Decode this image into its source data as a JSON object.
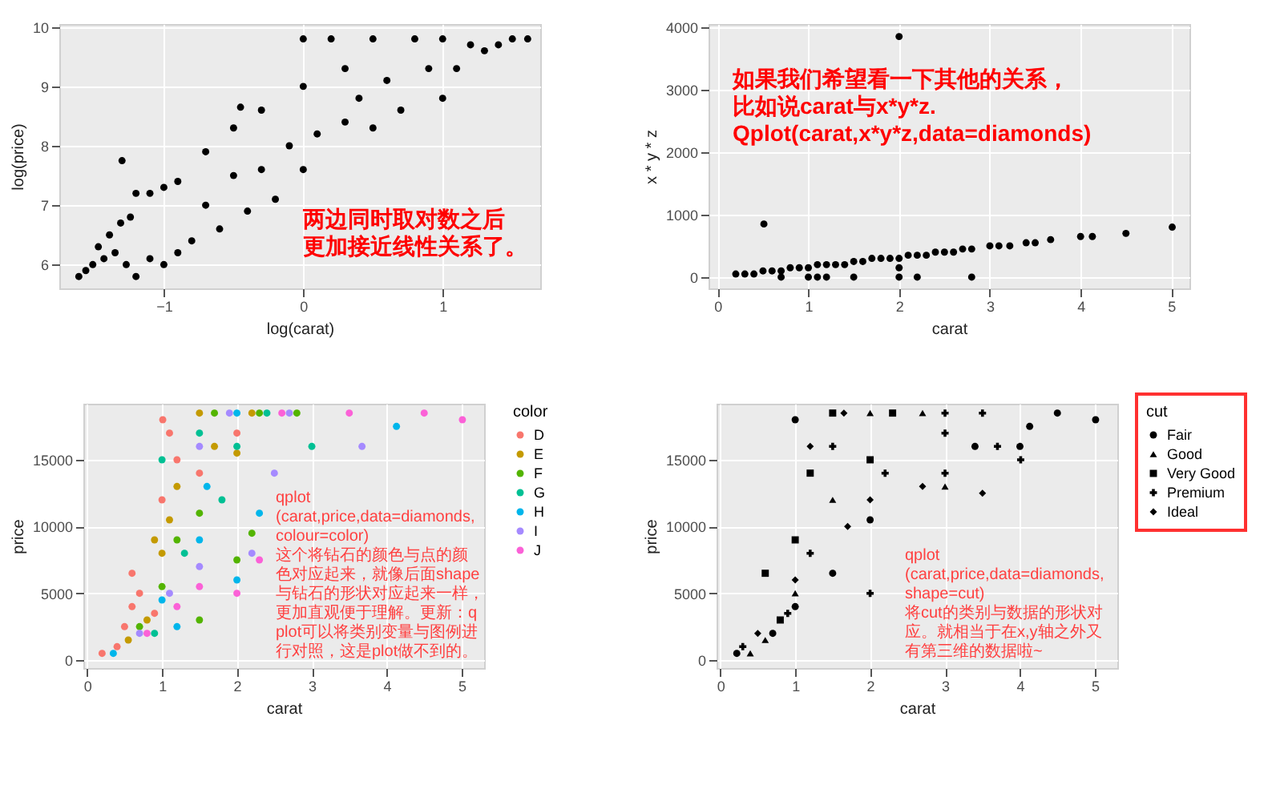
{
  "chart_data": [
    {
      "type": "scatter",
      "xlabel": "log(carat)",
      "ylabel": "log(price)",
      "xlim": [
        -1.75,
        1.7
      ],
      "ylim": [
        5.6,
        10.05
      ],
      "xticks": [
        -1,
        0,
        1
      ],
      "yticks": [
        6,
        7,
        8,
        9,
        10
      ],
      "grid": true,
      "marker": "circle",
      "annotations": [
        "两边同时取对数之后更加接近线性关系了。"
      ],
      "series": [
        {
          "color": "#000000",
          "x": [
            -1.61,
            -1.56,
            -1.51,
            -1.47,
            -1.43,
            -1.39,
            -1.35,
            -1.31,
            -1.27,
            -1.24,
            -1.2,
            -1.2,
            -1.1,
            -1.1,
            -1.0,
            -1.0,
            -0.9,
            -0.9,
            -0.8,
            -0.7,
            -0.7,
            -0.6,
            -0.5,
            -0.5,
            -0.4,
            -0.3,
            -0.3,
            -0.2,
            -0.1,
            0,
            0,
            0,
            0.1,
            0.2,
            0.3,
            0.3,
            0.4,
            0.5,
            0.5,
            0.6,
            0.7,
            0.8,
            0.9,
            1.0,
            1.0,
            1.1,
            1.2,
            1.3,
            1.4,
            1.5,
            1.61,
            -1.3,
            -0.45
          ],
          "values": [
            5.8,
            5.9,
            6.0,
            6.3,
            6.1,
            6.5,
            6.2,
            6.7,
            6.0,
            6.8,
            5.8,
            7.2,
            6.1,
            7.2,
            6.0,
            7.3,
            6.2,
            7.4,
            6.4,
            7.0,
            7.9,
            6.6,
            7.5,
            8.3,
            6.9,
            7.6,
            8.6,
            7.1,
            8.0,
            7.6,
            9.0,
            9.8,
            8.2,
            9.8,
            8.4,
            9.3,
            8.8,
            8.3,
            9.8,
            9.1,
            8.6,
            9.8,
            9.3,
            8.8,
            9.8,
            9.3,
            9.7,
            9.6,
            9.7,
            9.8,
            9.8,
            7.75,
            8.65
          ]
        }
      ]
    },
    {
      "type": "scatter",
      "xlabel": "carat",
      "ylabel": "x * y * z",
      "xlim": [
        -0.1,
        5.2
      ],
      "ylim": [
        -180,
        4050
      ],
      "xticks": [
        0,
        1,
        2,
        3,
        4,
        5
      ],
      "yticks": [
        0,
        1000,
        2000,
        3000,
        4000
      ],
      "grid": true,
      "marker": "circle",
      "annotations": [
        "如果我们希望看一下其他的关系，比如说carat与x*y*z.\nQplot(carat,x*y*z,data=diamonds)"
      ],
      "series": [
        {
          "color": "#000000",
          "x": [
            0.2,
            0.3,
            0.4,
            0.5,
            0.6,
            0.7,
            0.8,
            0.9,
            1.0,
            1.1,
            1.2,
            1.3,
            1.4,
            1.5,
            1.6,
            1.7,
            1.8,
            1.9,
            2.0,
            2.1,
            2.2,
            2.3,
            2.4,
            2.5,
            2.6,
            2.7,
            2.8,
            3.0,
            3.1,
            3.22,
            3.4,
            3.5,
            3.67,
            4.0,
            4.13,
            4.5,
            5.01,
            0.51,
            2.0,
            0.7,
            1.0,
            1.1,
            1.2,
            1.5,
            2.0,
            2.2,
            2.8,
            2.0
          ],
          "values": [
            50,
            50,
            50,
            100,
            100,
            100,
            150,
            150,
            150,
            200,
            200,
            200,
            200,
            250,
            250,
            300,
            300,
            300,
            300,
            350,
            350,
            350,
            400,
            400,
            400,
            450,
            450,
            500,
            500,
            500,
            550,
            550,
            600,
            650,
            650,
            700,
            800,
            850,
            3850,
            0,
            0,
            0,
            0,
            0,
            0,
            0,
            0,
            150
          ]
        }
      ]
    },
    {
      "type": "scatter",
      "xlabel": "carat",
      "ylabel": "price",
      "xlim": [
        -0.05,
        5.3
      ],
      "ylim": [
        -600,
        19200
      ],
      "xticks": [
        0,
        1,
        2,
        3,
        4,
        5
      ],
      "yticks": [
        0,
        5000,
        10000,
        15000
      ],
      "grid": true,
      "marker": "circle",
      "legend": "right",
      "legend_title": "color",
      "annotations": [
        "qplot\n(carat,price,data=diamonds,colour=color)\n这个将钻石的颜色与点的颜色对应起来，就像后面shape与钻石的形状对应起来一样，更加直观便于理解。更新：qplot可以将类别变量与图例进行对照，这是plot做不到的。"
      ],
      "series": [
        {
          "name": "D",
          "color": "#f8766d",
          "x": [
            0.2,
            0.4,
            0.5,
            0.6,
            0.6,
            0.7,
            0.9,
            1.0,
            1.01,
            1.1,
            1.2,
            1.5,
            2.0
          ],
          "values": [
            500,
            1000,
            2500,
            4000,
            6500,
            5000,
            3500,
            12000,
            18000,
            17000,
            15000,
            14000,
            17000
          ]
        },
        {
          "name": "E",
          "color": "#c49a00",
          "x": [
            0.55,
            0.8,
            0.9,
            1.0,
            1.1,
            1.2,
            1.5,
            1.7,
            2.0,
            2.2
          ],
          "values": [
            1500,
            3000,
            9000,
            8000,
            10500,
            13000,
            18500,
            16000,
            15500,
            18500
          ]
        },
        {
          "name": "F",
          "color": "#53b400",
          "x": [
            0.7,
            1.0,
            1.2,
            1.5,
            1.5,
            1.7,
            2.0,
            2.2,
            2.3,
            2.8
          ],
          "values": [
            2500,
            5500,
            9000,
            11000,
            3000,
            18500,
            7500,
            9500,
            18500,
            18500
          ]
        },
        {
          "name": "G",
          "color": "#00c094",
          "x": [
            0.9,
            1.0,
            1.3,
            1.5,
            1.8,
            2.0,
            2.4,
            3.0
          ],
          "values": [
            2000,
            15000,
            8000,
            17000,
            12000,
            16000,
            18500,
            16000
          ]
        },
        {
          "name": "H",
          "color": "#00b6eb",
          "x": [
            0.35,
            1.0,
            1.2,
            1.5,
            1.6,
            2.0,
            2.0,
            2.3,
            4.13
          ],
          "values": [
            500,
            4500,
            2500,
            9000,
            13000,
            6000,
            18500,
            11000,
            17500
          ]
        },
        {
          "name": "I",
          "color": "#a58aff",
          "x": [
            0.7,
            1.1,
            1.5,
            1.5,
            1.9,
            2.2,
            2.5,
            2.7,
            3.67
          ],
          "values": [
            2000,
            5000,
            7000,
            16000,
            18500,
            8000,
            14000,
            18500,
            16000
          ]
        },
        {
          "name": "J",
          "color": "#fb61d7",
          "x": [
            0.8,
            1.2,
            1.5,
            2.0,
            2.3,
            2.6,
            3.5,
            4.5,
            5.01
          ],
          "values": [
            2000,
            4000,
            5500,
            5000,
            7500,
            18500,
            18500,
            18500,
            18000
          ]
        }
      ]
    },
    {
      "type": "scatter",
      "xlabel": "carat",
      "ylabel": "price",
      "xlim": [
        -0.05,
        5.3
      ],
      "ylim": [
        -600,
        19200
      ],
      "xticks": [
        0,
        1,
        2,
        3,
        4,
        5
      ],
      "yticks": [
        0,
        5000,
        10000,
        15000
      ],
      "grid": true,
      "legend": "right",
      "legend_title": "cut",
      "annotations": [
        "qplot\n(carat,price,data=diamonds,shape=cut)\n将cut的类别与数据的形状对应。就相当于在x,y轴之外又有第三维的数据啦~"
      ],
      "series": [
        {
          "name": "Fair",
          "color": "#000000",
          "marker": "circle",
          "x": [
            0.22,
            0.7,
            1.0,
            1.0,
            1.5,
            2.0,
            3.4,
            4.0,
            4.13,
            4.5,
            5.01
          ],
          "values": [
            500,
            2000,
            4000,
            18000,
            6500,
            10500,
            16000,
            16000,
            17500,
            18500,
            18000
          ]
        },
        {
          "name": "Good",
          "color": "#000000",
          "marker": "triangle",
          "x": [
            0.4,
            0.6,
            1.0,
            1.5,
            2.0,
            2.7,
            3.0
          ],
          "values": [
            500,
            1500,
            5000,
            12000,
            18500,
            18500,
            13000
          ]
        },
        {
          "name": "Very Good",
          "color": "#000000",
          "marker": "square",
          "x": [
            0.6,
            0.8,
            1.0,
            1.2,
            1.5,
            2.0,
            2.3
          ],
          "values": [
            6500,
            3000,
            9000,
            14000,
            18500,
            15000,
            18500
          ]
        },
        {
          "name": "Premium",
          "color": "#000000",
          "marker": "cross",
          "x": [
            0.3,
            0.9,
            1.2,
            1.5,
            2.0,
            2.2,
            3.0,
            3.0,
            3.5,
            3.7,
            4.01,
            3.0
          ],
          "values": [
            1000,
            3500,
            8000,
            16000,
            5000,
            14000,
            14000,
            17000,
            18500,
            16000,
            15000,
            18500
          ]
        },
        {
          "name": "Ideal",
          "color": "#000000",
          "marker": "diamond",
          "x": [
            0.5,
            1.0,
            1.2,
            1.65,
            1.7,
            2.0,
            2.7,
            3.5
          ],
          "values": [
            2000,
            6000,
            16000,
            18500,
            10000,
            12000,
            13000,
            12500
          ]
        }
      ]
    }
  ]
}
